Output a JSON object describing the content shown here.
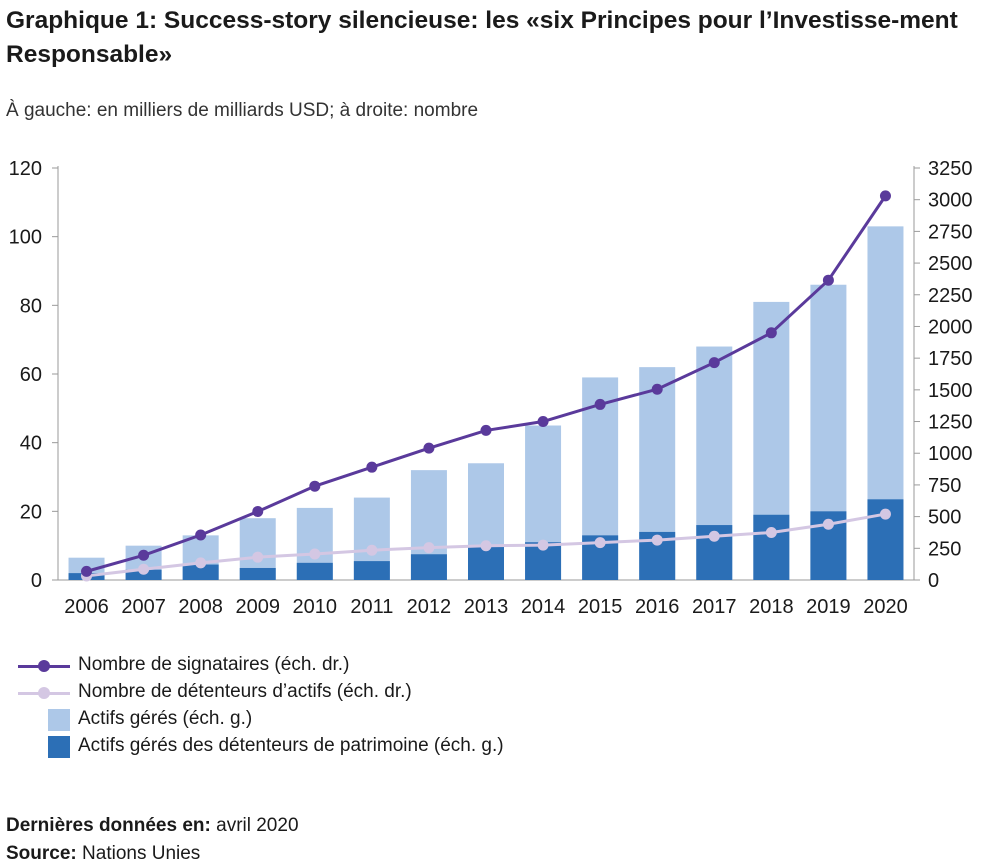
{
  "title": "Graphique 1: Success-story silencieuse: les «six Principes pour l’Investisse-ment Responsable»",
  "subtitle": "À gauche: en milliers de milliards USD; à droite: nombre",
  "chart_data": {
    "type": "bar",
    "categories": [
      "2006",
      "2007",
      "2008",
      "2009",
      "2010",
      "2011",
      "2012",
      "2013",
      "2014",
      "2015",
      "2016",
      "2017",
      "2018",
      "2019",
      "2020"
    ],
    "left_axis": {
      "ylim": [
        0,
        120
      ],
      "ticks": [
        0,
        20,
        40,
        60,
        80,
        100,
        120
      ]
    },
    "right_axis": {
      "ylim": [
        0,
        3250
      ],
      "ticks": [
        0,
        250,
        500,
        750,
        1000,
        1250,
        1500,
        1750,
        2000,
        2250,
        2500,
        2750,
        3000,
        3250
      ]
    },
    "bar_series": [
      {
        "name": "Actifs gérés (éch. g.)",
        "axis": "left",
        "color": "#adc8e8",
        "values": [
          6.5,
          10,
          13,
          18,
          21,
          24,
          32,
          34,
          45,
          59,
          62,
          68,
          81,
          86,
          103
        ]
      },
      {
        "name": "Actifs gérés des détenteurs de patrimoine (éch. g.)",
        "axis": "left",
        "color": "#2c6fb6",
        "values": [
          2,
          3,
          4.5,
          3.5,
          5,
          5.5,
          7.5,
          10,
          11,
          13,
          14,
          16,
          19,
          20,
          23.5
        ]
      }
    ],
    "line_series": [
      {
        "name": "Nombre de signataires (éch. dr.)",
        "axis": "right",
        "color": "#5a3a9b",
        "values": [
          68,
          195,
          355,
          540,
          740,
          890,
          1040,
          1180,
          1250,
          1385,
          1505,
          1715,
          1950,
          2365,
          3030
        ]
      },
      {
        "name": "Nombre de détenteurs d’actifs (éch. dr.)",
        "axis": "right",
        "color": "#d4c7e3",
        "values": [
          32,
          85,
          135,
          180,
          205,
          235,
          255,
          270,
          275,
          295,
          315,
          345,
          375,
          440,
          520
        ]
      }
    ]
  },
  "legend": [
    {
      "label": "Nombre de signataires (éch. dr.)",
      "kind": "line",
      "color": "#5a3a9b"
    },
    {
      "label": "Nombre de détenteurs d’actifs (éch. dr.)",
      "kind": "line",
      "color": "#d4c7e3"
    },
    {
      "label": "Actifs gérés (éch. g.)",
      "kind": "box",
      "color": "#adc8e8"
    },
    {
      "label": "Actifs gérés des détenteurs de patrimoine (éch. g.)",
      "kind": "box",
      "color": "#2c6fb6"
    }
  ],
  "footer": {
    "date_label": "Dernières données en:",
    "date_value": "avril 2020",
    "source_label": "Source:",
    "source_value": "Nations Unies"
  }
}
